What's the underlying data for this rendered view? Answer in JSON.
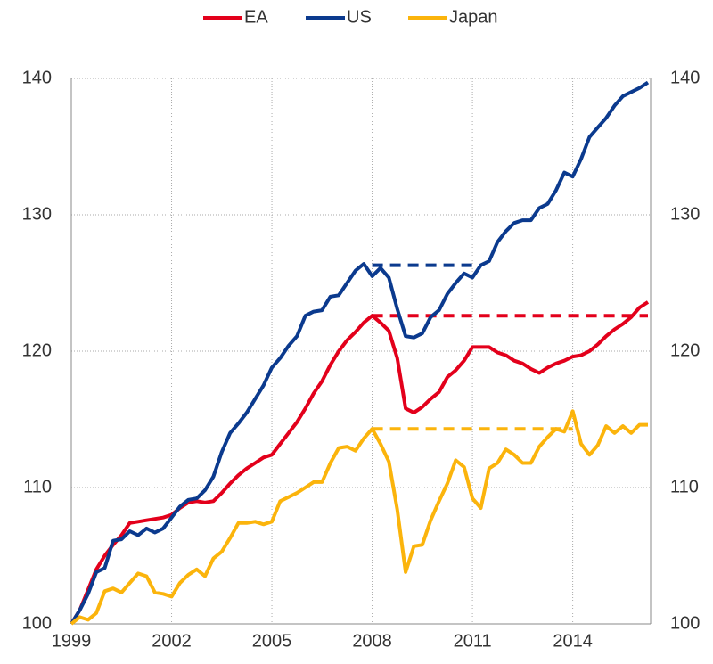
{
  "chart_data": {
    "type": "line",
    "x": [
      1999,
      1999.25,
      1999.5,
      1999.75,
      2000,
      2000.25,
      2000.5,
      2000.75,
      2001,
      2001.25,
      2001.5,
      2001.75,
      2002,
      2002.25,
      2002.5,
      2002.75,
      2003,
      2003.25,
      2003.5,
      2003.75,
      2004,
      2004.25,
      2004.5,
      2004.75,
      2005,
      2005.25,
      2005.5,
      2005.75,
      2006,
      2006.25,
      2006.5,
      2006.75,
      2007,
      2007.25,
      2007.5,
      2007.75,
      2008,
      2008.25,
      2008.5,
      2008.75,
      2009,
      2009.25,
      2009.5,
      2009.75,
      2010,
      2010.25,
      2010.5,
      2010.75,
      2011,
      2011.25,
      2011.5,
      2011.75,
      2012,
      2012.25,
      2012.5,
      2012.75,
      2013,
      2013.25,
      2013.5,
      2013.75,
      2014,
      2014.25,
      2014.5,
      2014.75,
      2015,
      2015.25,
      2015.5,
      2015.75,
      2016,
      2016.25
    ],
    "series": [
      {
        "name": "EA",
        "color": "#e3001b",
        "values": [
          100,
          101,
          102.5,
          104,
          105,
          105.8,
          106.5,
          107.4,
          107.5,
          107.6,
          107.7,
          107.8,
          108,
          108.5,
          108.9,
          109,
          108.9,
          109,
          109.6,
          110.3,
          110.9,
          111.4,
          111.8,
          112.2,
          112.4,
          113.2,
          114,
          114.8,
          115.8,
          116.9,
          117.8,
          119,
          120,
          120.8,
          121.4,
          122.1,
          122.6,
          122.1,
          121.5,
          119.5,
          115.8,
          115.5,
          115.9,
          116.5,
          117,
          118.1,
          118.6,
          119.3,
          120.3,
          120.3,
          120.3,
          119.9,
          119.7,
          119.3,
          119.1,
          118.7,
          118.4,
          118.8,
          119.1,
          119.3,
          119.6,
          119.7,
          120,
          120.5,
          121.1,
          121.6,
          122,
          122.5,
          123.2,
          123.6
        ]
      },
      {
        "name": "US",
        "color": "#0b3a8e",
        "values": [
          100,
          101,
          102.2,
          103.8,
          104.1,
          106.1,
          106.2,
          106.8,
          106.5,
          107,
          106.7,
          107,
          107.8,
          108.6,
          109.1,
          109.2,
          109.8,
          110.8,
          112.6,
          114,
          114.7,
          115.5,
          116.5,
          117.5,
          118.8,
          119.5,
          120.4,
          121.1,
          122.6,
          122.9,
          123,
          124,
          124.1,
          125,
          125.9,
          126.4,
          125.5,
          126.1,
          125.4,
          123.1,
          121.1,
          121,
          121.3,
          122.5,
          123,
          124.2,
          125,
          125.7,
          125.4,
          126.3,
          126.6,
          128,
          128.8,
          129.4,
          129.6,
          129.6,
          130.5,
          130.8,
          131.8,
          133.1,
          132.8,
          134.1,
          135.7,
          136.4,
          137.1,
          138,
          138.7,
          139,
          139.3,
          139.7
        ]
      },
      {
        "name": "Japan",
        "color": "#fbb40c",
        "values": [
          100,
          100.5,
          100.3,
          100.8,
          102.4,
          102.6,
          102.3,
          103,
          103.7,
          103.5,
          102.3,
          102.2,
          102,
          103,
          103.6,
          104,
          103.5,
          104.8,
          105.3,
          106.3,
          107.4,
          107.4,
          107.5,
          107.3,
          107.5,
          109,
          109.3,
          109.6,
          110,
          110.4,
          110.4,
          111.8,
          112.9,
          113,
          112.7,
          113.6,
          114.3,
          113.2,
          111.9,
          108.4,
          103.8,
          105.7,
          105.8,
          107.6,
          109,
          110.3,
          112,
          111.5,
          109.2,
          108.5,
          111.4,
          111.8,
          112.8,
          112.4,
          111.8,
          111.8,
          113,
          113.7,
          114.3,
          114.1,
          115.6,
          113.2,
          112.4,
          113.1,
          114.5,
          114,
          114.5,
          114,
          114.6,
          114.6
        ]
      }
    ],
    "reference_lines": [
      {
        "color": "#e3001b",
        "x": [
          2008,
          2016.25
        ],
        "values": [
          122.6,
          122.6
        ],
        "dashed": true
      },
      {
        "color": "#0b3a8e",
        "x": [
          2008,
          2011
        ],
        "values": [
          126.3,
          126.3
        ],
        "dashed": true
      },
      {
        "color": "#fbb40c",
        "x": [
          2008,
          2014
        ],
        "values": [
          114.3,
          114.3
        ],
        "dashed": true
      }
    ],
    "xlim": [
      1999,
      2016.33
    ],
    "xticks": [
      1999,
      2002,
      2005,
      2008,
      2011,
      2014
    ],
    "ylim": [
      100,
      140
    ],
    "yticks": [
      100,
      110,
      120,
      130,
      140
    ],
    "y2lim": [
      100,
      140
    ],
    "y2ticks": [
      100,
      110,
      120,
      130,
      140
    ],
    "grid": true,
    "legend": "top"
  }
}
